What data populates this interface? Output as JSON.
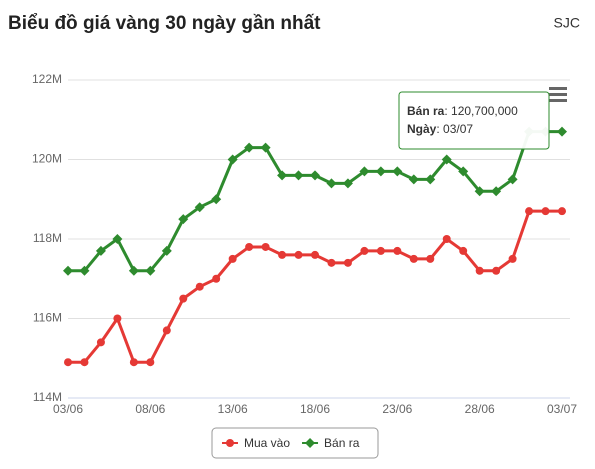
{
  "chart_data": {
    "type": "line",
    "title": "Biểu đồ giá vàng 30 ngày gần nhất",
    "source": "SJC",
    "categories": [
      "03/06",
      null,
      null,
      null,
      null,
      "08/06",
      null,
      null,
      null,
      null,
      "13/06",
      null,
      null,
      null,
      null,
      "18/06",
      null,
      null,
      null,
      null,
      "23/06",
      null,
      null,
      null,
      null,
      "28/06",
      null,
      null,
      null,
      null,
      "03/07"
    ],
    "series": [
      {
        "name": "Mua vào",
        "color": "#e53935",
        "marker": "circle",
        "values": [
          114900000,
          114900000,
          115400000,
          116000000,
          114900000,
          114900000,
          115700000,
          116500000,
          116800000,
          117000000,
          117500000,
          117800000,
          117800000,
          117600000,
          117600000,
          117600000,
          117400000,
          117400000,
          117700000,
          117700000,
          117700000,
          117500000,
          117500000,
          118000000,
          117700000,
          117200000,
          117200000,
          117500000,
          118700000,
          118700000,
          118700000
        ]
      },
      {
        "name": "Bán ra",
        "color": "#2e8b2e",
        "marker": "diamond",
        "values": [
          117200000,
          117200000,
          117700000,
          118000000,
          117200000,
          117200000,
          117700000,
          118500000,
          118800000,
          119000000,
          120000000,
          120300000,
          120300000,
          119600000,
          119600000,
          119600000,
          119400000,
          119400000,
          119700000,
          119700000,
          119700000,
          119500000,
          119500000,
          120000000,
          119700000,
          119200000,
          119200000,
          119500000,
          120700000,
          120700000,
          120700000
        ]
      }
    ],
    "ylim": [
      114000000,
      122000000
    ],
    "yticks": [
      {
        "value": 114000000,
        "label": "114M"
      },
      {
        "value": 116000000,
        "label": "116M"
      },
      {
        "value": 118000000,
        "label": "118M"
      },
      {
        "value": 120000000,
        "label": "120M"
      },
      {
        "value": 122000000,
        "label": "122M"
      }
    ],
    "grid": true,
    "legend": "bottom",
    "tooltip": {
      "value_label": "120,700,000",
      "date_label": "Ngày"
    }
  }
}
